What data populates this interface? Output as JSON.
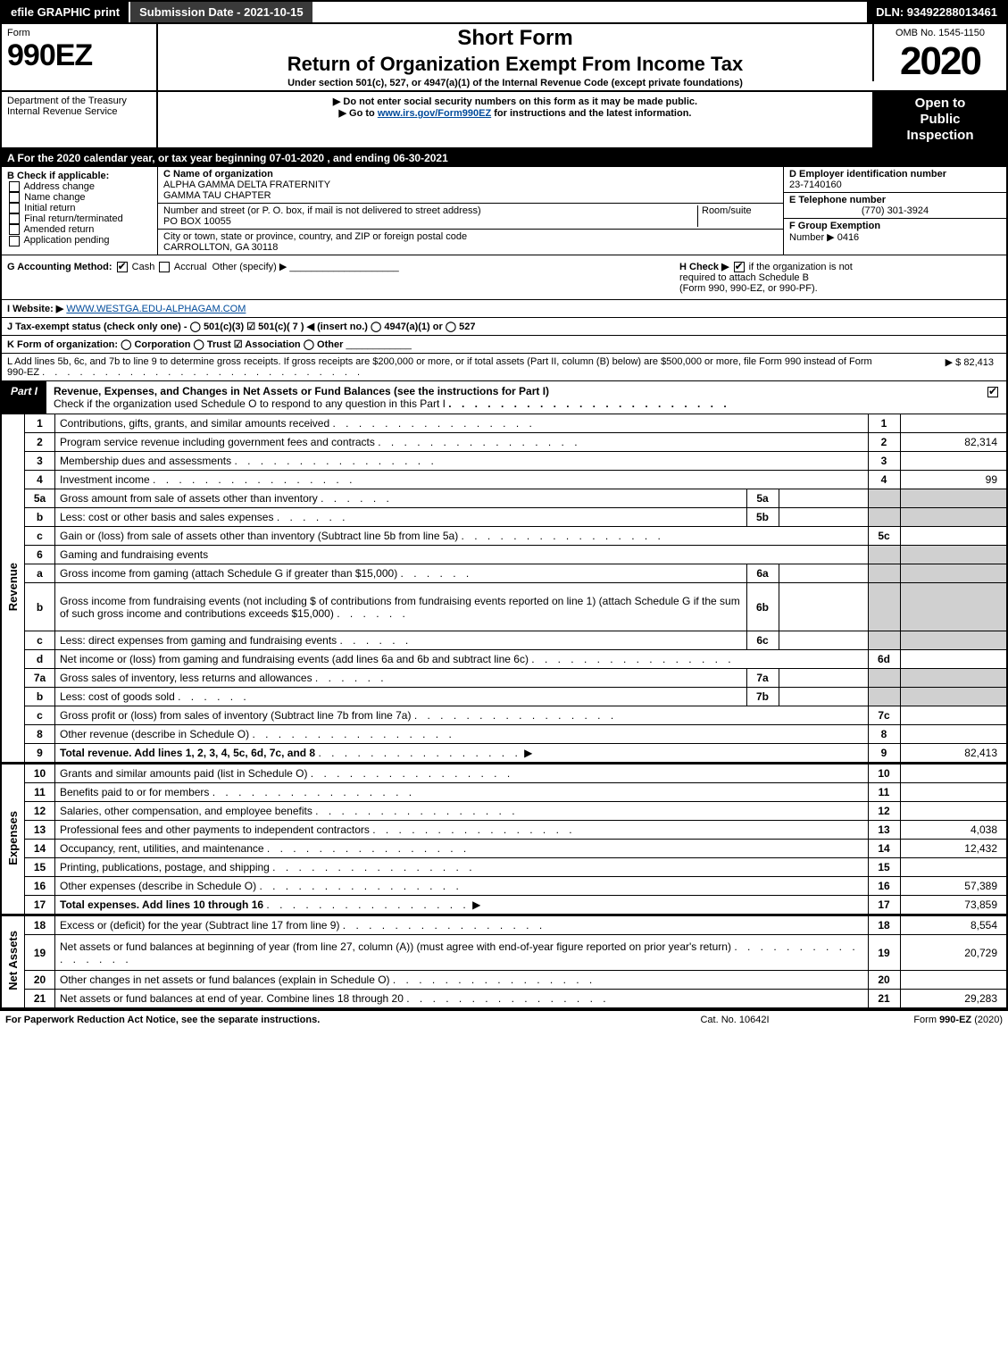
{
  "colors": {
    "black": "#000000",
    "white": "#ffffff",
    "darkgray": "#3a3a3a",
    "shade": "#d0d0d0",
    "link": "#004b9b"
  },
  "topbar": {
    "efile": "efile GRAPHIC print",
    "submission": "Submission Date - 2021-10-15",
    "dln": "DLN: 93492288013461"
  },
  "header": {
    "form_label": "Form",
    "form_number": "990EZ",
    "short_form": "Short Form",
    "main_title": "Return of Organization Exempt From Income Tax",
    "subtitle": "Under section 501(c), 527, or 4947(a)(1) of the Internal Revenue Code (except private foundations)",
    "omb": "OMB No. 1545-1150",
    "year": "2020",
    "dept": "Department of the Treasury",
    "service": "Internal Revenue Service",
    "warn1": "▶ Do not enter social security numbers on this form as it may be made public.",
    "warn2_pre": "▶ Go to ",
    "warn2_link": "www.irs.gov/Form990EZ",
    "warn2_post": " for instructions and the latest information.",
    "open1": "Open to",
    "open2": "Public",
    "open3": "Inspection"
  },
  "period": "A For the 2020 calendar year, or tax year beginning 07-01-2020 , and ending 06-30-2021",
  "sectionB": {
    "label": "B  Check if applicable:",
    "items": [
      "Address change",
      "Name change",
      "Initial return",
      "Final return/terminated",
      "Amended return",
      "Application pending"
    ]
  },
  "sectionC": {
    "label": "C Name of organization",
    "name1": "ALPHA GAMMA DELTA FRATERNITY",
    "name2": "GAMMA TAU CHAPTER",
    "street_label": "Number and street (or P. O. box, if mail is not delivered to street address)",
    "room_label": "Room/suite",
    "street": "PO BOX 10055",
    "city_label": "City or town, state or province, country, and ZIP or foreign postal code",
    "city": "CARROLLTON, GA  30118"
  },
  "sectionDEF": {
    "d_label": "D Employer identification number",
    "d_val": "23-7140160",
    "e_label": "E Telephone number",
    "e_val": "(770) 301-3924",
    "f_label": "F Group Exemption",
    "f_label2": "Number  ▶",
    "f_val": "0416"
  },
  "rowG": {
    "label": "G Accounting Method:",
    "cash": "Cash",
    "accrual": "Accrual",
    "other": "Other (specify) ▶"
  },
  "rowH": {
    "pre": "H  Check ▶",
    "post": "if the organization is not",
    "line2": "required to attach Schedule B",
    "line3": "(Form 990, 990-EZ, or 990-PF)."
  },
  "rowI": {
    "label": "I Website: ▶",
    "val": "WWW.WESTGA.EDU-ALPHAGAM.COM"
  },
  "rowJ": "J Tax-exempt status (check only one) - ◯ 501(c)(3)  ☑ 501(c)( 7 ) ◀ (insert no.)  ◯ 4947(a)(1) or  ◯ 527",
  "rowK": "K Form of organization:  ◯ Corporation  ◯ Trust  ☑ Association  ◯ Other",
  "rowL": {
    "text": "L Add lines 5b, 6c, and 7b to line 9 to determine gross receipts. If gross receipts are $200,000 or more, or if total assets (Part II, column (B) below) are $500,000 or more, file Form 990 instead of Form 990-EZ",
    "amount_prefix": "▶ $ ",
    "amount": "82,413"
  },
  "part1": {
    "tab": "Part I",
    "title": "Revenue, Expenses, and Changes in Net Assets or Fund Balances (see the instructions for Part I)",
    "subtitle": "Check if the organization used Schedule O to respond to any question in this Part I",
    "checked": true
  },
  "sections": {
    "revenue": "Revenue",
    "expenses": "Expenses",
    "netassets": "Net Assets"
  },
  "lines": [
    {
      "n": "1",
      "d": "Contributions, gifts, grants, and similar amounts received",
      "rn": "1",
      "rv": ""
    },
    {
      "n": "2",
      "d": "Program service revenue including government fees and contracts",
      "rn": "2",
      "rv": "82,314"
    },
    {
      "n": "3",
      "d": "Membership dues and assessments",
      "rn": "3",
      "rv": ""
    },
    {
      "n": "4",
      "d": "Investment income",
      "rn": "4",
      "rv": "99"
    },
    {
      "n": "5a",
      "d": "Gross amount from sale of assets other than inventory",
      "mb": "5a",
      "shade": true
    },
    {
      "n": "b",
      "d": "Less: cost or other basis and sales expenses",
      "mb": "5b",
      "shade": true
    },
    {
      "n": "c",
      "d": "Gain or (loss) from sale of assets other than inventory (Subtract line 5b from line 5a)",
      "rn": "5c",
      "rv": ""
    },
    {
      "n": "6",
      "d": "Gaming and fundraising events",
      "shade": true,
      "noboxes": true
    },
    {
      "n": "a",
      "d": "Gross income from gaming (attach Schedule G if greater than $15,000)",
      "mb": "6a",
      "shade": true
    },
    {
      "n": "b",
      "d": "Gross income from fundraising events (not including $                    of contributions from fundraising events reported on line 1) (attach Schedule G if the sum of such gross income and contributions exceeds $15,000)",
      "mb": "6b",
      "shade": true,
      "tall": true
    },
    {
      "n": "c",
      "d": "Less: direct expenses from gaming and fundraising events",
      "mb": "6c",
      "shade": true
    },
    {
      "n": "d",
      "d": "Net income or (loss) from gaming and fundraising events (add lines 6a and 6b and subtract line 6c)",
      "rn": "6d",
      "rv": ""
    },
    {
      "n": "7a",
      "d": "Gross sales of inventory, less returns and allowances",
      "mb": "7a",
      "shade": true
    },
    {
      "n": "b",
      "d": "Less: cost of goods sold",
      "mb": "7b",
      "shade": true
    },
    {
      "n": "c",
      "d": "Gross profit or (loss) from sales of inventory (Subtract line 7b from line 7a)",
      "rn": "7c",
      "rv": ""
    },
    {
      "n": "8",
      "d": "Other revenue (describe in Schedule O)",
      "rn": "8",
      "rv": ""
    },
    {
      "n": "9",
      "d": "Total revenue. Add lines 1, 2, 3, 4, 5c, 6d, 7c, and 8",
      "rn": "9",
      "rv": "82,413",
      "bold": true,
      "arrow": true
    }
  ],
  "exp_lines": [
    {
      "n": "10",
      "d": "Grants and similar amounts paid (list in Schedule O)",
      "rn": "10",
      "rv": ""
    },
    {
      "n": "11",
      "d": "Benefits paid to or for members",
      "rn": "11",
      "rv": ""
    },
    {
      "n": "12",
      "d": "Salaries, other compensation, and employee benefits",
      "rn": "12",
      "rv": ""
    },
    {
      "n": "13",
      "d": "Professional fees and other payments to independent contractors",
      "rn": "13",
      "rv": "4,038"
    },
    {
      "n": "14",
      "d": "Occupancy, rent, utilities, and maintenance",
      "rn": "14",
      "rv": "12,432"
    },
    {
      "n": "15",
      "d": "Printing, publications, postage, and shipping",
      "rn": "15",
      "rv": ""
    },
    {
      "n": "16",
      "d": "Other expenses (describe in Schedule O)",
      "rn": "16",
      "rv": "57,389"
    },
    {
      "n": "17",
      "d": "Total expenses. Add lines 10 through 16",
      "rn": "17",
      "rv": "73,859",
      "bold": true,
      "arrow": true
    }
  ],
  "na_lines": [
    {
      "n": "18",
      "d": "Excess or (deficit) for the year (Subtract line 17 from line 9)",
      "rn": "18",
      "rv": "8,554"
    },
    {
      "n": "19",
      "d": "Net assets or fund balances at beginning of year (from line 27, column (A)) (must agree with end-of-year figure reported on prior year's return)",
      "rn": "19",
      "rv": "20,729",
      "tall": true
    },
    {
      "n": "20",
      "d": "Other changes in net assets or fund balances (explain in Schedule O)",
      "rn": "20",
      "rv": ""
    },
    {
      "n": "21",
      "d": "Net assets or fund balances at end of year. Combine lines 18 through 20",
      "rn": "21",
      "rv": "29,283"
    }
  ],
  "footer": {
    "left": "For Paperwork Reduction Act Notice, see the separate instructions.",
    "mid": "Cat. No. 10642I",
    "right_pre": "Form ",
    "right_form": "990-EZ",
    "right_post": " (2020)"
  }
}
